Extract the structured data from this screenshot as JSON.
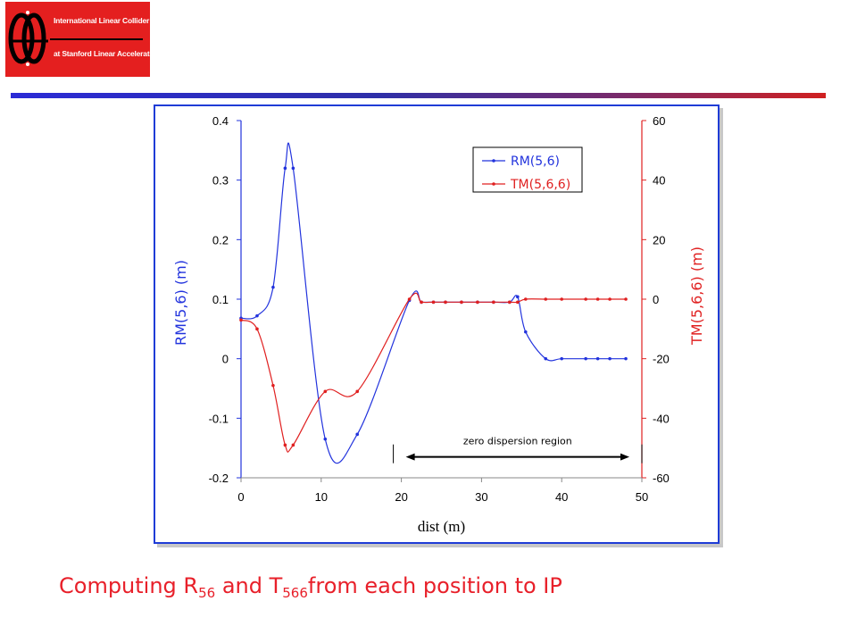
{
  "logo": {
    "line1": "International Linear Collider",
    "line2": "at Stanford Linear Accelerator Center"
  },
  "caption": {
    "p1": "Computing R",
    "s1": "56",
    "p2": " and T",
    "s2": "566",
    "p3": "from each position to IP"
  },
  "colors": {
    "rm": "#2233dd",
    "tm": "#e02020",
    "frame": "#1f3cd6",
    "caption": "#e8202a"
  },
  "chart_data": {
    "type": "line",
    "title": "",
    "xlabel": "dist (m)",
    "ylabel": "RM(5,6) (m)",
    "y2label": "TM(5,6,6) (m)",
    "xlim": [
      0,
      50
    ],
    "ylim": [
      -0.2,
      0.4
    ],
    "y2lim": [
      -60,
      60
    ],
    "xticks": [
      "0",
      "10",
      "20",
      "30",
      "40",
      "50"
    ],
    "yticks": [
      "-0.2",
      "-0.1",
      "0",
      "0.1",
      "0.2",
      "0.3",
      "0.4"
    ],
    "y2ticks": [
      "-60",
      "-40",
      "-20",
      "0",
      "20",
      "40",
      "60"
    ],
    "grid": false,
    "legend": "top-right",
    "series": [
      {
        "name": "RM(5,6)",
        "axis": "left",
        "x": [
          0,
          2,
          4,
          5.5,
          6.5,
          10.5,
          14.5,
          21,
          22.5,
          24,
          25.5,
          27.5,
          29.5,
          31.5,
          33.5,
          34.5,
          35.5,
          38,
          40,
          43,
          44.5,
          46,
          48
        ],
        "y": [
          0.068,
          0.072,
          0.12,
          0.32,
          0.32,
          -0.135,
          -0.127,
          0.098,
          0.095,
          0.095,
          0.095,
          0.095,
          0.095,
          0.095,
          0.095,
          0.104,
          0.045,
          0.0,
          0.0,
          0.0,
          0.0,
          0.0,
          0.0
        ]
      },
      {
        "name": "TM(5,6,6)",
        "axis": "right",
        "x": [
          0,
          2,
          4,
          5.5,
          6.5,
          10.5,
          14.5,
          21,
          22.5,
          24,
          25.5,
          27.5,
          29.5,
          31.5,
          33.5,
          34.5,
          35.5,
          38,
          40,
          43,
          44.5,
          46,
          48
        ],
        "y": [
          -7,
          -10,
          -29,
          -49,
          -49,
          -31,
          -31,
          0,
          -1,
          -1,
          -1,
          -1,
          -1,
          -1,
          -1,
          -1,
          0,
          0,
          0,
          0,
          0,
          0,
          0
        ]
      }
    ],
    "annotations": [
      {
        "text": "zero dispersion region",
        "x_start": 20,
        "x_end": 49,
        "y2": -50
      }
    ]
  }
}
